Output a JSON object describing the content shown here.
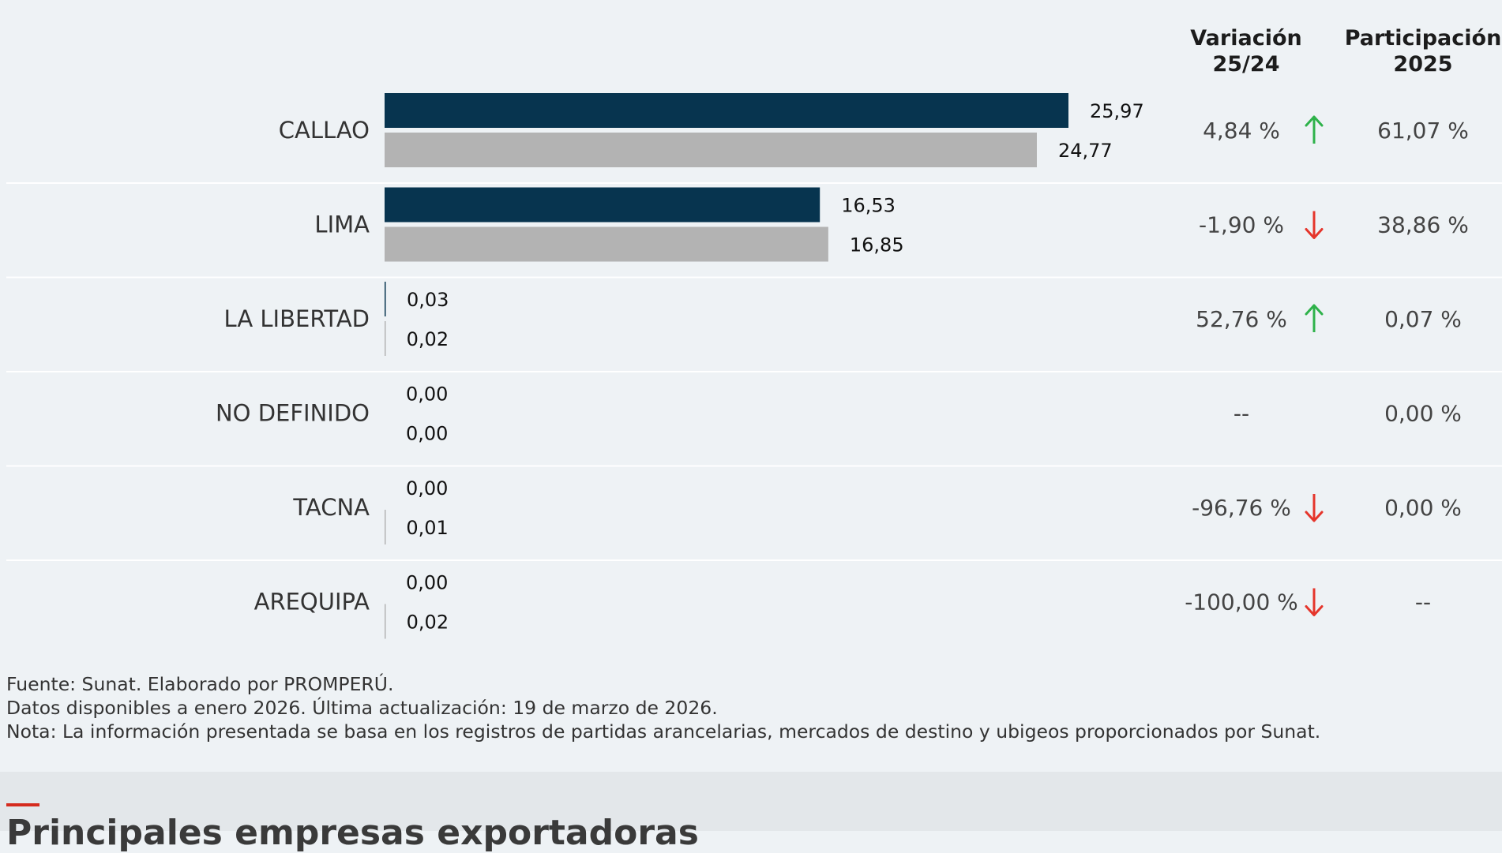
{
  "columns": {
    "variation": {
      "line1": "Variación",
      "line2": "25/24"
    },
    "share": {
      "line1": "Participación",
      "line2": "2025"
    }
  },
  "colors": {
    "current": "#07344f",
    "previous": "#b3b3b3",
    "up_arrow": "#2eb24a",
    "down_arrow": "#e5352b",
    "separator": "#ffffff"
  },
  "chart_data": {
    "type": "bar",
    "orientation": "horizontal",
    "categories": [
      "CALLAO",
      "LIMA",
      "LA LIBERTAD",
      "NO DEFINIDO",
      "TACNA",
      "AREQUIPA"
    ],
    "series": [
      {
        "values": [
          25.97,
          16.53,
          0.03,
          0.0,
          0.0,
          0.0
        ],
        "labels": [
          "25,97",
          "16,53",
          "0,03",
          "0,00",
          "0,00",
          "0,00"
        ]
      },
      {
        "values": [
          24.77,
          16.85,
          0.02,
          0.0,
          0.01,
          0.02
        ],
        "labels": [
          "24,77",
          "16,85",
          "0,02",
          "0,00",
          "0,01",
          "0,02"
        ]
      }
    ],
    "xlim": [
      0,
      26
    ],
    "grid": false
  },
  "table": [
    {
      "variation": "4,84 %",
      "trend": "up",
      "share": "61,07 %"
    },
    {
      "variation": "-1,90 %",
      "trend": "down",
      "share": "38,86 %"
    },
    {
      "variation": "52,76 %",
      "trend": "up",
      "share": "0,07 %"
    },
    {
      "variation": "--",
      "trend": "none",
      "share": "0,00 %"
    },
    {
      "variation": "-96,76 %",
      "trend": "down",
      "share": "0,00 %"
    },
    {
      "variation": "-100,00 %",
      "trend": "down",
      "share": "--"
    }
  ],
  "footer": {
    "source": "Fuente: Sunat. Elaborado por PROMPERÚ.",
    "data_note": "Datos disponibles a enero 2026. Última actualización: 19 de marzo de 2026.",
    "note": "Nota: La información presentada se basa en los registros de partidas arancelarias, mercados de destino y ubigeos proporcionados por Sunat."
  },
  "next_section": {
    "title": "Principales empresas exportadoras"
  }
}
